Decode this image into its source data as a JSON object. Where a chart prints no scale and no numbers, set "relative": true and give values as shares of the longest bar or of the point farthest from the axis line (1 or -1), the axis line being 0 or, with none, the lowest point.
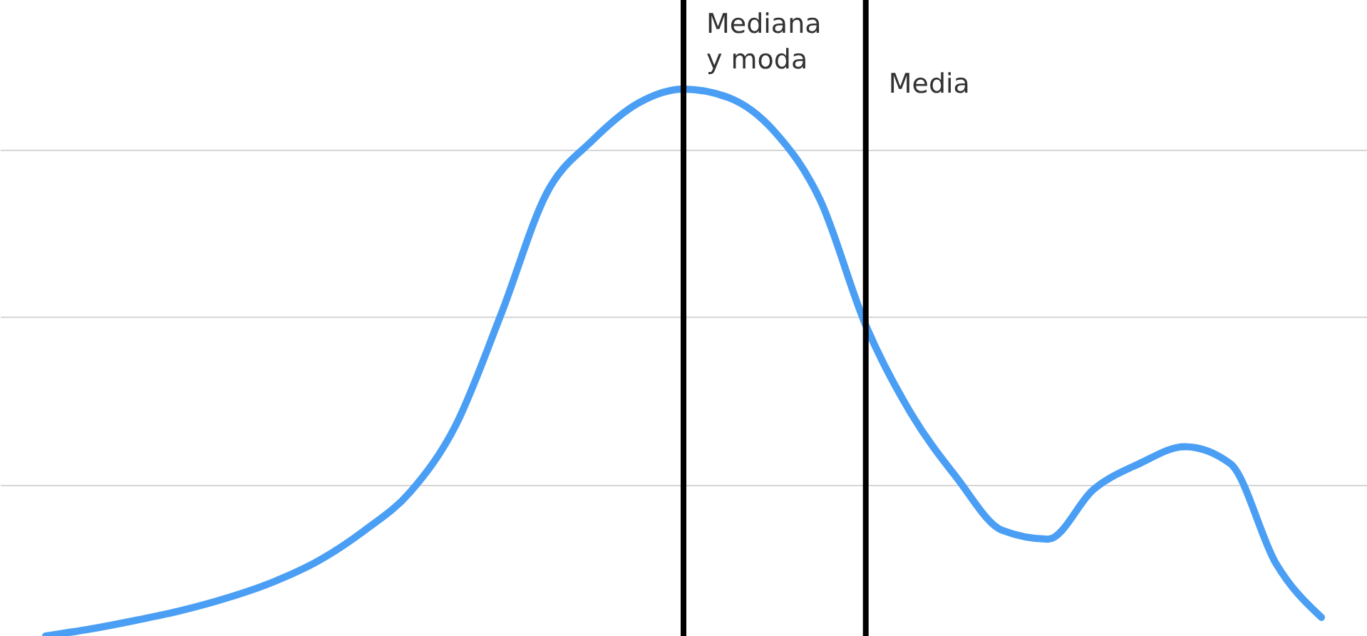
{
  "chart_data": {
    "type": "line",
    "relative": true,
    "categories": [
      null,
      null,
      null,
      null,
      null,
      null,
      null,
      null,
      null,
      null,
      null,
      null,
      null,
      null,
      null,
      null,
      null,
      null,
      null,
      null,
      null,
      null,
      null,
      null,
      null,
      null,
      null,
      null,
      null
    ],
    "series": [
      {
        "color": "#4a9ff5",
        "values": [
          0,
          0.013,
          0.029,
          0.047,
          0.07,
          0.099,
          0.138,
          0.193,
          0.263,
          0.385,
          0.589,
          0.81,
          0.906,
          0.974,
          1,
          0.984,
          0.922,
          0.797,
          0.568,
          0.406,
          0.289,
          0.193,
          0.177,
          0.268,
          0.315,
          0.346,
          0.315,
          0.133,
          0.034
        ]
      }
    ],
    "annotations": [
      "Mediana\ny moda",
      "Media"
    ]
  }
}
